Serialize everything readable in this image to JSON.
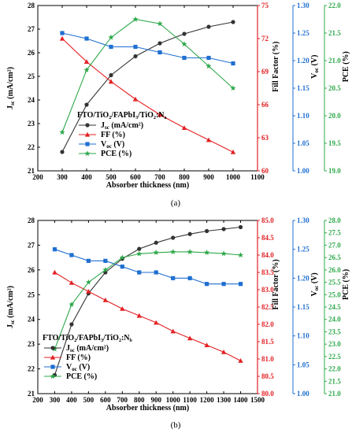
{
  "chart_data": [
    {
      "type": "line",
      "caption": "(a)",
      "legend_title": "FTO/TiO2/FAPbI3/TiO2:Na",
      "legend_placement": "lower-left",
      "xlabel": "Absorber thickness (nm)",
      "xlim": [
        200,
        1100
      ],
      "x_ticks": [
        "200",
        "300",
        "400",
        "500",
        "600",
        "700",
        "800",
        "900",
        "1000",
        "1100"
      ],
      "grid": false,
      "axes": [
        {
          "id": "jsc",
          "label": "Jsc (mA/cm²)",
          "side": "left",
          "color": "#000000",
          "lim": [
            21,
            28
          ],
          "ticks": [
            "21",
            "22",
            "23",
            "24",
            "25",
            "26",
            "27",
            "28"
          ]
        },
        {
          "id": "ff",
          "label": "Fill Factor (%)",
          "side": "right-1",
          "color": "#e32124",
          "lim": [
            60,
            75
          ],
          "ticks": [
            "60",
            "63",
            "66",
            "69",
            "72",
            "75"
          ]
        },
        {
          "id": "voc",
          "label": "Voc (V)",
          "side": "right-2",
          "color": "#1f6fd1",
          "lim": [
            1.0,
            1.3
          ],
          "ticks": [
            "1.00",
            "1.05",
            "1.10",
            "1.15",
            "1.20",
            "1.25",
            "1.30"
          ]
        },
        {
          "id": "pce",
          "label": "PCE (%)",
          "side": "right-3",
          "color": "#2ea84a",
          "lim": [
            19.0,
            22.0
          ],
          "ticks": [
            "19.0",
            "19.5",
            "20.0",
            "20.5",
            "21.0",
            "21.5",
            "22.0"
          ]
        }
      ],
      "x": [
        300,
        400,
        500,
        600,
        700,
        800,
        900,
        1000
      ],
      "series": [
        {
          "name": "Jsc (mA/cm²)",
          "axis": "jsc",
          "color": "#333333",
          "marker": "circle",
          "values": [
            21.8,
            23.8,
            25.05,
            25.85,
            26.4,
            26.8,
            27.1,
            27.3
          ]
        },
        {
          "name": "FF (%)",
          "axis": "ff",
          "color": "#e32124",
          "marker": "triangle",
          "values": [
            72.0,
            69.9,
            68.1,
            66.5,
            65.1,
            63.9,
            62.8,
            61.7
          ]
        },
        {
          "name": "Voc (V)",
          "axis": "voc",
          "color": "#1f6fd1",
          "marker": "square",
          "values": [
            1.25,
            1.24,
            1.225,
            1.225,
            1.215,
            1.205,
            1.205,
            1.195
          ]
        },
        {
          "name": "PCE (%)",
          "axis": "pce",
          "color": "#2ea84a",
          "marker": "star",
          "values": [
            19.7,
            20.83,
            21.42,
            21.75,
            21.67,
            21.3,
            20.9,
            20.5
          ]
        }
      ]
    },
    {
      "type": "line",
      "caption": "(b)",
      "legend_title": "FTO/TiO2/FAPbI3/TiO2:Nb",
      "legend_placement": "lower-left",
      "xlabel": "Absorber thickness (nm)",
      "xlim": [
        200,
        1500
      ],
      "x_ticks": [
        "200",
        "300",
        "400",
        "500",
        "600",
        "700",
        "800",
        "900",
        "1000",
        "1100",
        "1200",
        "1300",
        "1400",
        "1500"
      ],
      "grid": false,
      "axes": [
        {
          "id": "jsc",
          "label": "Jsc (mA/cm²)",
          "side": "left",
          "color": "#000000",
          "lim": [
            21,
            28
          ],
          "ticks": [
            "21",
            "22",
            "23",
            "24",
            "25",
            "26",
            "27",
            "28"
          ]
        },
        {
          "id": "ff",
          "label": "Fill Factor (%)",
          "side": "right-1",
          "color": "#e32124",
          "lim": [
            80.0,
            85.0
          ],
          "ticks": [
            "80.0",
            "80.5",
            "81.0",
            "81.5",
            "82.0",
            "82.5",
            "83.0",
            "83.5",
            "84.0",
            "84.5",
            "85.0"
          ]
        },
        {
          "id": "voc",
          "label": "Voc (V)",
          "side": "right-2",
          "color": "#1f6fd1",
          "lim": [
            1.0,
            1.3
          ],
          "ticks": [
            "1.00",
            "1.05",
            "1.10",
            "1.15",
            "1.20",
            "1.25",
            "1.30"
          ]
        },
        {
          "id": "pce",
          "label": "PCE (%)",
          "side": "right-3",
          "color": "#2ea84a",
          "lim": [
            21.0,
            28.0
          ],
          "ticks": [
            "21.0",
            "21.5",
            "22.0",
            "22.5",
            "23.0",
            "23.5",
            "24.0",
            "24.5",
            "25.0",
            "25.5",
            "26.0",
            "26.5",
            "27.0",
            "27.5",
            "28.0"
          ]
        }
      ],
      "x": [
        300,
        400,
        500,
        600,
        700,
        800,
        900,
        1000,
        1100,
        1200,
        1300,
        1400
      ],
      "series": [
        {
          "name": "Jsc (mA/cm²)",
          "axis": "jsc",
          "color": "#333333",
          "marker": "circle",
          "values": [
            21.75,
            23.8,
            25.05,
            25.9,
            26.45,
            26.85,
            27.1,
            27.3,
            27.45,
            27.57,
            27.65,
            27.73
          ]
        },
        {
          "name": "FF (%)",
          "axis": "ff",
          "color": "#e32124",
          "marker": "triangle",
          "values": [
            83.5,
            83.2,
            82.95,
            82.7,
            82.45,
            82.25,
            82.05,
            81.8,
            81.6,
            81.4,
            81.2,
            80.95
          ]
        },
        {
          "name": "Voc (V)",
          "axis": "voc",
          "color": "#1f6fd1",
          "marker": "square",
          "values": [
            1.25,
            1.24,
            1.23,
            1.23,
            1.22,
            1.21,
            1.21,
            1.2,
            1.2,
            1.19,
            1.19,
            1.19
          ]
        },
        {
          "name": "PCE (%)",
          "axis": "pce",
          "color": "#2ea84a",
          "marker": "star",
          "values": [
            22.8,
            24.6,
            25.5,
            26.0,
            26.5,
            26.65,
            26.7,
            26.73,
            26.73,
            26.7,
            26.66,
            26.6
          ]
        }
      ]
    }
  ]
}
